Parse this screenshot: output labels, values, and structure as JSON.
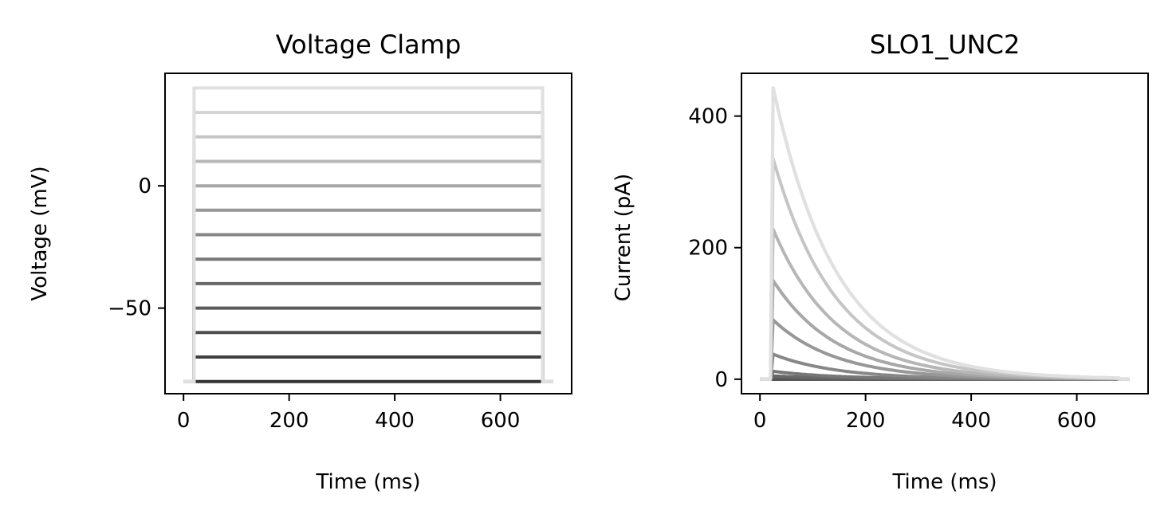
{
  "chart_data": [
    {
      "type": "line",
      "title": "Voltage Clamp",
      "xlabel": "Time (ms)",
      "ylabel": "Voltage (mV)",
      "xlim": [
        -35,
        735
      ],
      "ylim": [
        -85,
        46
      ],
      "xticks": [
        0,
        200,
        400,
        600
      ],
      "xtick_labels": [
        "0",
        "200",
        "400",
        "600"
      ],
      "yticks": [
        0,
        -50
      ],
      "ytick_labels": [
        "0",
        "−50"
      ],
      "holding_potential": -80,
      "step_start": 20,
      "step_end": 680,
      "t_end": 700,
      "step_levels": [
        -80,
        -70,
        -60,
        -50,
        -40,
        -30,
        -20,
        -10,
        0,
        10,
        20,
        30,
        40
      ],
      "series_colors": [
        "#333333",
        "#404040",
        "#4d4d4d",
        "#5a5a5a",
        "#686868",
        "#777777",
        "#878787",
        "#979797",
        "#a7a7a7",
        "#b6b6b6",
        "#c5c5c5",
        "#d3d3d3",
        "#e0e0e0"
      ],
      "grid": false
    },
    {
      "type": "line",
      "title": "SLO1_UNC2",
      "xlabel": "Time (ms)",
      "ylabel": "Current (pA)",
      "xlim": [
        -35,
        735
      ],
      "ylim": [
        -22,
        465
      ],
      "xticks": [
        0,
        200,
        400,
        600
      ],
      "xtick_labels": [
        "0",
        "200",
        "400",
        "600"
      ],
      "yticks": [
        0,
        200,
        400
      ],
      "ytick_labels": [
        "0",
        "200",
        "400"
      ],
      "onset_ms": 20,
      "peak_time_ms": 25,
      "end_ms": 680,
      "t_end": 700,
      "peak_currents": [
        0,
        0,
        1,
        2,
        5,
        12,
        38,
        90,
        150,
        228,
        335,
        443,
        443
      ],
      "decay_tau_ms": 120,
      "series_colors": [
        "#333333",
        "#404040",
        "#4d4d4d",
        "#5a5a5a",
        "#686868",
        "#777777",
        "#878787",
        "#979797",
        "#a7a7a7",
        "#b6b6b6",
        "#c5c5c5",
        "#d3d3d3",
        "#e0e0e0"
      ],
      "grid": false
    }
  ]
}
